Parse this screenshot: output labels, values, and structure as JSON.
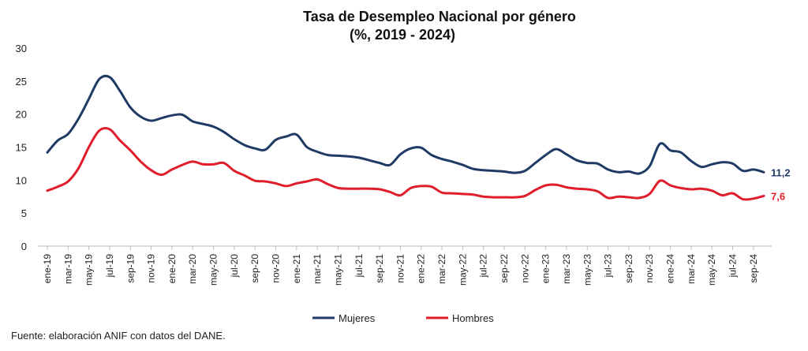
{
  "chart_data": {
    "type": "line",
    "title": "Tasa de Desempleo Nacional por género",
    "subtitle": "(%, 2019 - 2024)",
    "xlabel": "",
    "ylabel": "",
    "ylim": [
      0,
      30
    ],
    "yticks": [
      0,
      5,
      10,
      15,
      20,
      25,
      30
    ],
    "x_tick_labels": [
      "ene-19",
      "mar-19",
      "may-19",
      "jul-19",
      "sep-19",
      "nov-19",
      "ene-20",
      "mar-20",
      "may-20",
      "jul-20",
      "sep-20",
      "nov-20",
      "ene-21",
      "mar-21",
      "may-21",
      "jul-21",
      "sep-21",
      "nov-21",
      "ene-22",
      "mar-22",
      "may-22",
      "jul-22",
      "sep-22",
      "nov-22",
      "ene-23",
      "mar-23",
      "may-23",
      "jul-23",
      "sep-23",
      "nov-23",
      "ene-24",
      "mar-24",
      "may-24",
      "jul-24",
      "sep-24"
    ],
    "grid": false,
    "legend_position": "bottom",
    "series": [
      {
        "name": "Mujeres",
        "color": "#1f3a64",
        "end_label": "11,2",
        "values": [
          14.2,
          16.0,
          17.0,
          19.3,
          22.3,
          25.3,
          25.6,
          23.5,
          21.0,
          19.6,
          19.0,
          19.4,
          19.8,
          19.9,
          18.9,
          18.5,
          18.1,
          17.3,
          16.2,
          15.3,
          14.8,
          14.6,
          16.1,
          16.6,
          16.9,
          15.0,
          14.3,
          13.8,
          13.7,
          13.6,
          13.4,
          13.0,
          12.6,
          12.3,
          13.9,
          14.8,
          14.9,
          13.8,
          13.2,
          12.8,
          12.3,
          11.7,
          11.5,
          11.4,
          11.3,
          11.1,
          11.4,
          12.6,
          13.8,
          14.7,
          13.9,
          13.0,
          12.6,
          12.5,
          11.6,
          11.2,
          11.3,
          11.0,
          12.1,
          15.5,
          14.5,
          14.2,
          12.9,
          12.0,
          12.4,
          12.7,
          12.5,
          11.4,
          11.6,
          11.2
        ]
      },
      {
        "name": "Hombres",
        "color": "#e01e2b",
        "end_label": "7,6",
        "values": [
          8.4,
          9.0,
          9.8,
          11.8,
          15.0,
          17.5,
          17.7,
          16.0,
          14.5,
          12.8,
          11.5,
          10.8,
          11.6,
          12.3,
          12.8,
          12.4,
          12.4,
          12.6,
          11.4,
          10.7,
          9.9,
          9.8,
          9.5,
          9.1,
          9.5,
          9.8,
          10.1,
          9.4,
          8.8,
          8.7,
          8.7,
          8.7,
          8.6,
          8.2,
          7.7,
          8.8,
          9.1,
          9.0,
          8.1,
          8.0,
          7.9,
          7.8,
          7.5,
          7.4,
          7.4,
          7.4,
          7.6,
          8.5,
          9.2,
          9.3,
          8.9,
          8.7,
          8.6,
          8.3,
          7.3,
          7.5,
          7.4,
          7.3,
          7.9,
          9.9,
          9.2,
          8.8,
          8.6,
          8.7,
          8.4,
          7.7,
          8.0,
          7.1,
          7.2,
          7.6
        ]
      }
    ]
  },
  "source": "Fuente: elaboración ANIF con datos del DANE."
}
